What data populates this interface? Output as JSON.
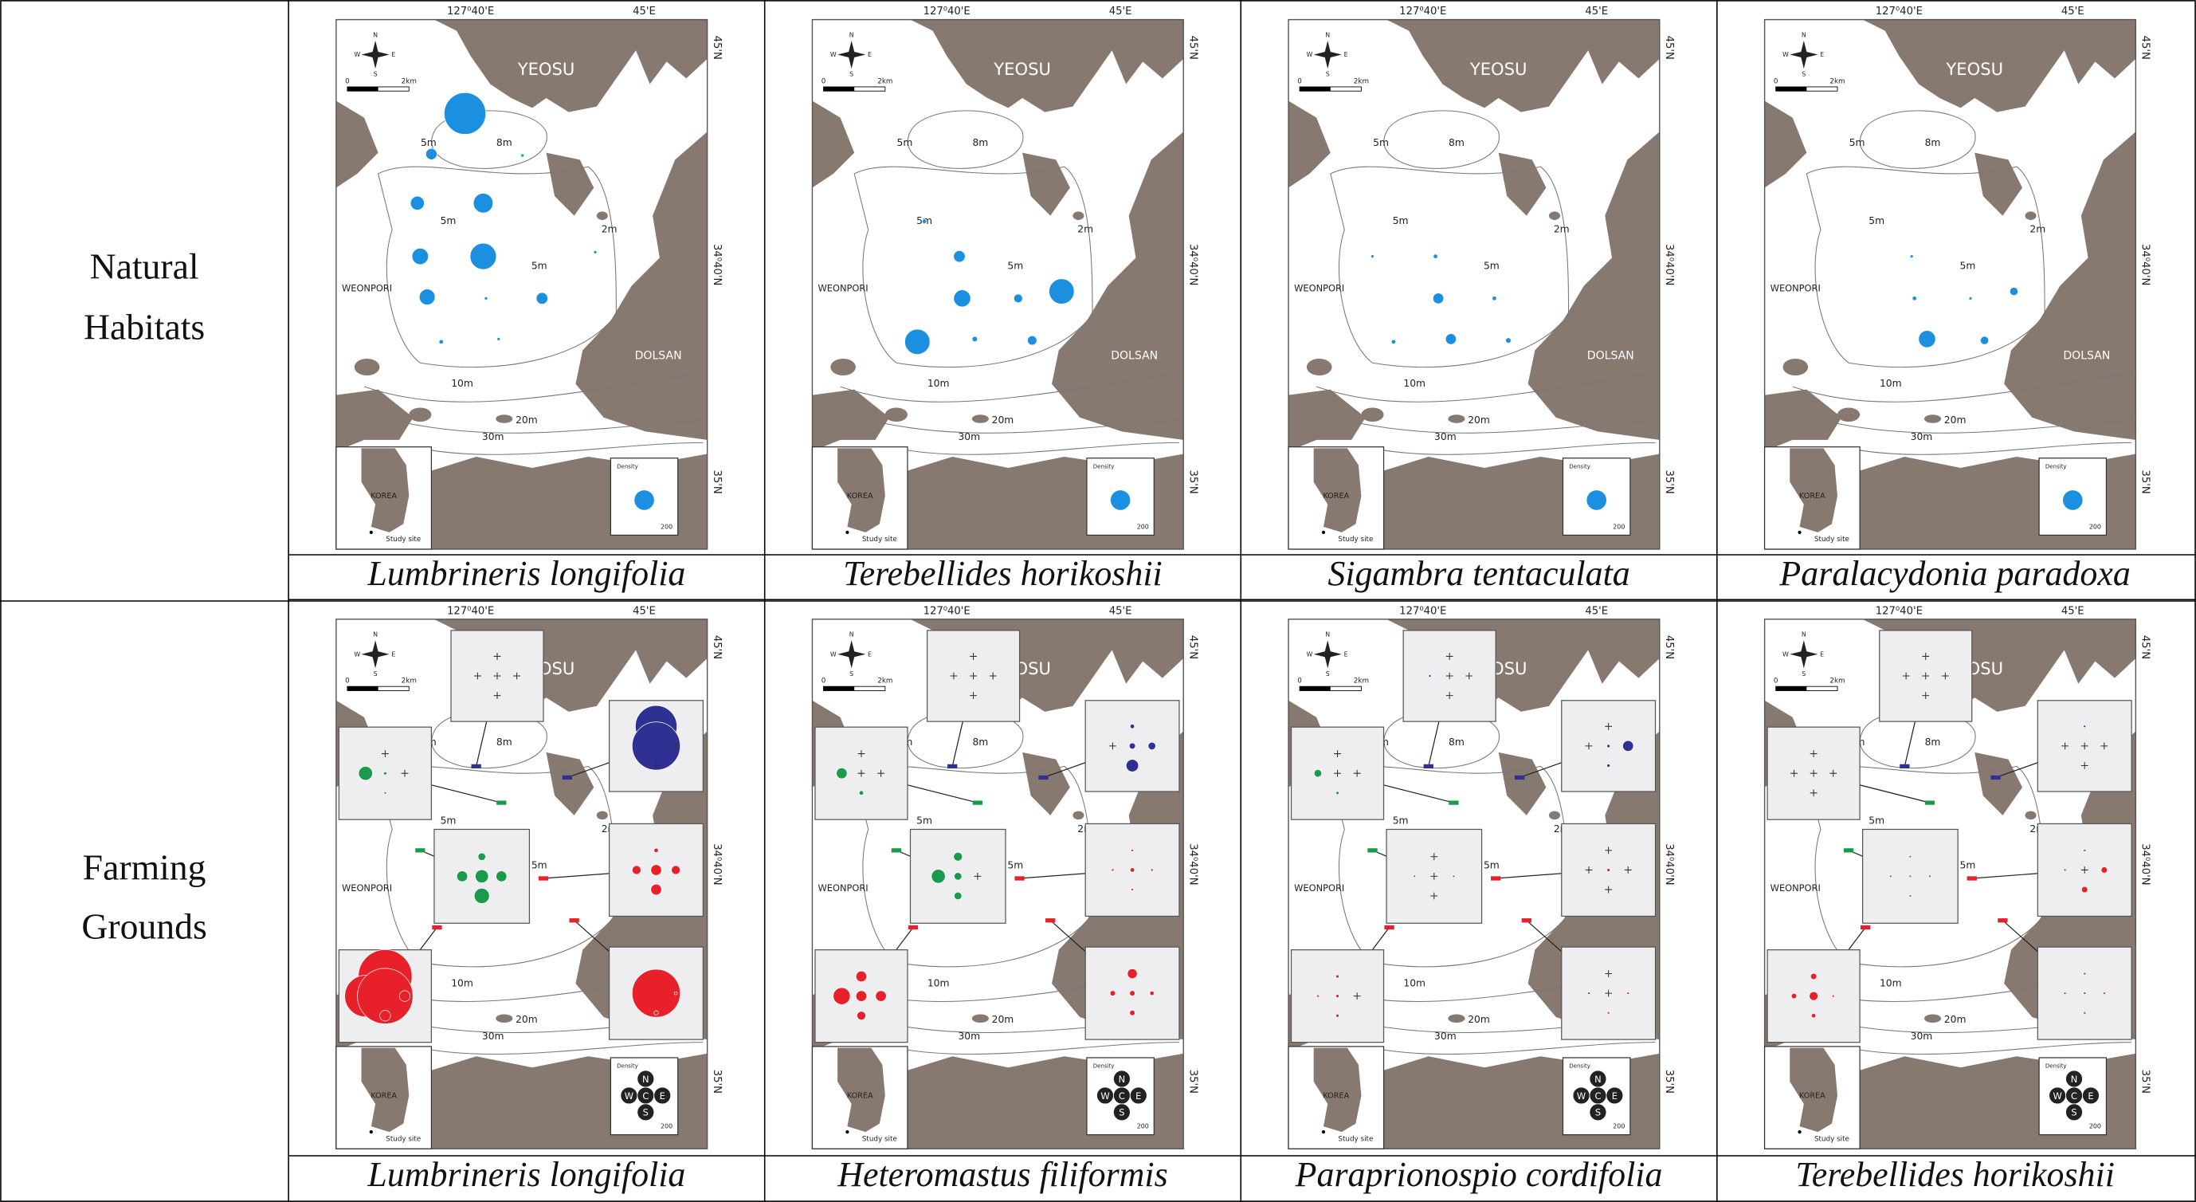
{
  "map_labels": {
    "lon": [
      "127⁰40'E",
      "45'E"
    ],
    "lat": [
      "45'N",
      "34⁰40'N",
      "35'N"
    ],
    "compass": {
      "n": "N",
      "s": "S",
      "e": "E",
      "w": "W"
    },
    "scale": [
      "0",
      "2km"
    ],
    "places": {
      "yeosu": "YEOSU",
      "weonpori": "WEONPORI",
      "dolsan": "DOLSAN"
    },
    "depths": [
      "5m",
      "8m",
      "5m",
      "2m",
      "5m",
      "10m",
      "20m",
      "30m"
    ],
    "inset": {
      "country": "KOREA",
      "site": "Study site"
    },
    "legend": {
      "title": "Density",
      "size": 200,
      "directions": [
        "N",
        "W",
        "C",
        "E",
        "S"
      ]
    }
  },
  "rows": [
    {
      "label": [
        "Natural",
        "Habitats"
      ],
      "maps": [
        {
          "species": "Lumbrineris longifolia",
          "densities": [
            900,
            65,
            5,
            100,
            200,
            0,
            140,
            360,
            5,
            130,
            5,
            70,
            0,
            10,
            5,
            0
          ]
        },
        {
          "species": "Terebellides horikoshii",
          "densities": [
            0,
            0,
            0,
            0,
            0,
            10,
            0,
            70,
            0,
            0,
            150,
            40,
            330,
            330,
            15,
            45
          ]
        },
        {
          "species": "Sigambra tentaculata",
          "densities": [
            0,
            0,
            0,
            0,
            0,
            0,
            5,
            10,
            0,
            0,
            60,
            10,
            0,
            10,
            60,
            15
          ]
        },
        {
          "species": "Paralacydonia paradoxa",
          "densities": [
            0,
            0,
            0,
            0,
            0,
            0,
            0,
            5,
            0,
            0,
            10,
            5,
            35,
            0,
            150,
            35
          ]
        }
      ]
    },
    {
      "label": [
        "Farming",
        "Grounds"
      ],
      "maps": [
        {
          "species": "Lumbrineris longifolia",
          "sites": [
            [
              0,
              0,
              0,
              0,
              0
            ],
            [
              0,
              100,
              5,
              0,
              3
            ],
            [
              900,
              0,
              1200,
              0,
              0
            ],
            [
              30,
              60,
              90,
              60,
              120
            ],
            [
              10,
              40,
              60,
              40,
              60
            ],
            [
              1500,
              900,
              1600,
              60,
              60
            ],
            [
              20,
              5,
              1200,
              5,
              10
            ]
          ]
        },
        {
          "species": "Heteromastus filiformis",
          "sites": [
            [
              0,
              0,
              0,
              0,
              0
            ],
            [
              0,
              60,
              0,
              0,
              10
            ],
            [
              10,
              0,
              20,
              30,
              80
            ],
            [
              40,
              100,
              30,
              0,
              30
            ],
            [
              3,
              3,
              10,
              3,
              3
            ],
            [
              60,
              150,
              60,
              60,
              40
            ],
            [
              50,
              15,
              15,
              10,
              15
            ]
          ]
        },
        {
          "species": "Paraprionospio cordifolia",
          "sites": [
            [
              0,
              3,
              0,
              0,
              0
            ],
            [
              0,
              30,
              0,
              0,
              5
            ],
            [
              0,
              0,
              5,
              60,
              5
            ],
            [
              0,
              3,
              0,
              3,
              0
            ],
            [
              0,
              0,
              5,
              0,
              0
            ],
            [
              5,
              3,
              5,
              0,
              5
            ],
            [
              0,
              3,
              0,
              3,
              3
            ]
          ]
        },
        {
          "species": "Terebellides horikoshii",
          "sites": [
            [
              0,
              0,
              0,
              0,
              0
            ],
            [
              0,
              0,
              0,
              0,
              0
            ],
            [
              3,
              0,
              0,
              0,
              0
            ],
            [
              3,
              3,
              3,
              3,
              3
            ],
            [
              3,
              3,
              0,
              20,
              20
            ],
            [
              20,
              15,
              40,
              3,
              10
            ],
            [
              3,
              3,
              3,
              3,
              3
            ]
          ]
        }
      ]
    }
  ]
}
